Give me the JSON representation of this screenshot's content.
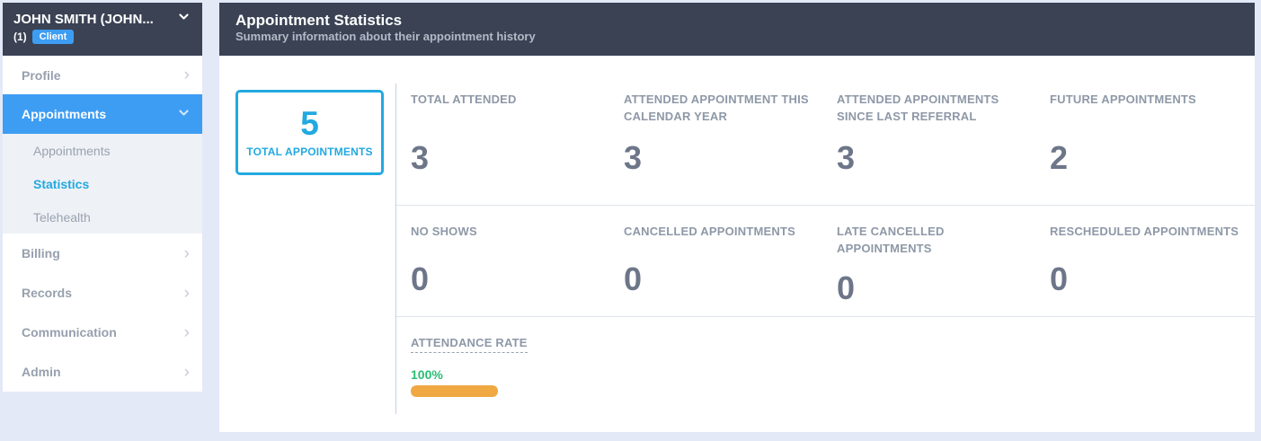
{
  "colors": {
    "page-bg": "#e3e9f7",
    "dark-header": "#3a4254",
    "accent-blue": "#3d9df3",
    "accent-cyan": "#22a9e0",
    "label-gray": "#8e98a7",
    "value-gray": "#6d7689",
    "green": "#28bd73",
    "orange": "#f0a843"
  },
  "sidebar": {
    "client_name": "JOHN SMITH (JOHN...",
    "client_number": "(1)",
    "client_badge": "Client",
    "profile_label": "Profile",
    "appointments_label": "Appointments",
    "billing_label": "Billing",
    "records_label": "Records",
    "communication_label": "Communication",
    "admin_label": "Admin",
    "appointments_subitems": [
      {
        "label": "Appointments",
        "active": false
      },
      {
        "label": "Statistics",
        "active": true
      },
      {
        "label": "Telehealth",
        "active": false
      }
    ]
  },
  "header": {
    "title": "Appointment Statistics",
    "subtitle": "Summary information about their appointment history"
  },
  "summary_box": {
    "value": "5",
    "label": "TOTAL APPOINTMENTS"
  },
  "stats": {
    "row1": [
      {
        "label": "TOTAL ATTENDED",
        "value": "3"
      },
      {
        "label": "ATTENDED APPOINTMENT THIS CALENDAR YEAR",
        "value": "3"
      },
      {
        "label": "ATTENDED APPOINTMENTS SINCE LAST REFERRAL",
        "value": "3"
      },
      {
        "label": "FUTURE APPOINTMENTS",
        "value": "2"
      }
    ],
    "row2": [
      {
        "label": "NO SHOWS",
        "value": "0"
      },
      {
        "label": "CANCELLED APPOINTMENTS",
        "value": "0"
      },
      {
        "label": "LATE CANCELLED APPOINTMENTS",
        "value": "0"
      },
      {
        "label": "RESCHEDULED APPOINTMENTS",
        "value": "0"
      }
    ]
  },
  "attendance": {
    "label": "ATTENDANCE RATE",
    "percent_label": "100%",
    "percent_value": 100
  }
}
